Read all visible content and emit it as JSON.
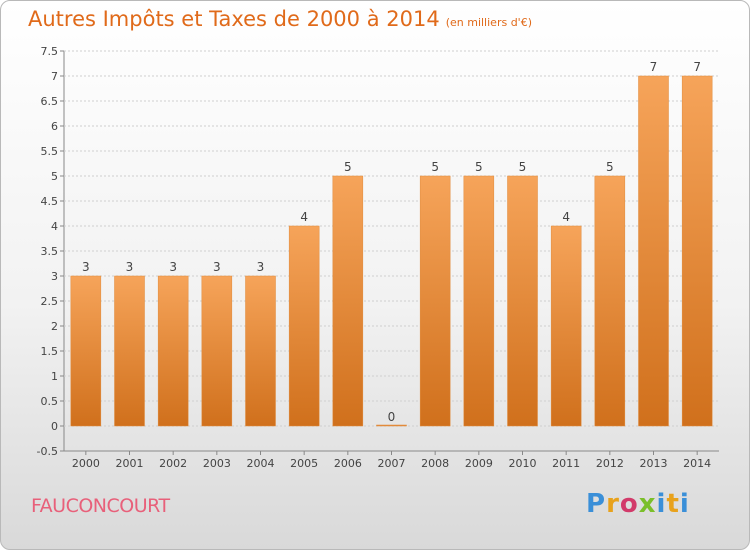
{
  "chart_data": {
    "type": "bar",
    "title": "Autres Impôts et Taxes de 2000 à 2014",
    "unit": "(en milliers d'€)",
    "categories": [
      "2000",
      "2001",
      "2002",
      "2003",
      "2004",
      "2005",
      "2006",
      "2007",
      "2008",
      "2009",
      "2010",
      "2011",
      "2012",
      "2013",
      "2014"
    ],
    "values": [
      3,
      3,
      3,
      3,
      3,
      4,
      5,
      0,
      5,
      5,
      5,
      4,
      5,
      7,
      7
    ],
    "ylim": [
      -0.5,
      7.5
    ],
    "yticks": [
      "-0.5",
      "0",
      "0.5",
      "1",
      "1.5",
      "2",
      "2.5",
      "3",
      "3.5",
      "4",
      "4.5",
      "5",
      "5.5",
      "6",
      "6.5",
      "7",
      "7.5"
    ],
    "grid": true,
    "bar_color": "#f0903a"
  },
  "commune": "FAUCONCOURT",
  "logo": {
    "text": "Proxiti"
  }
}
